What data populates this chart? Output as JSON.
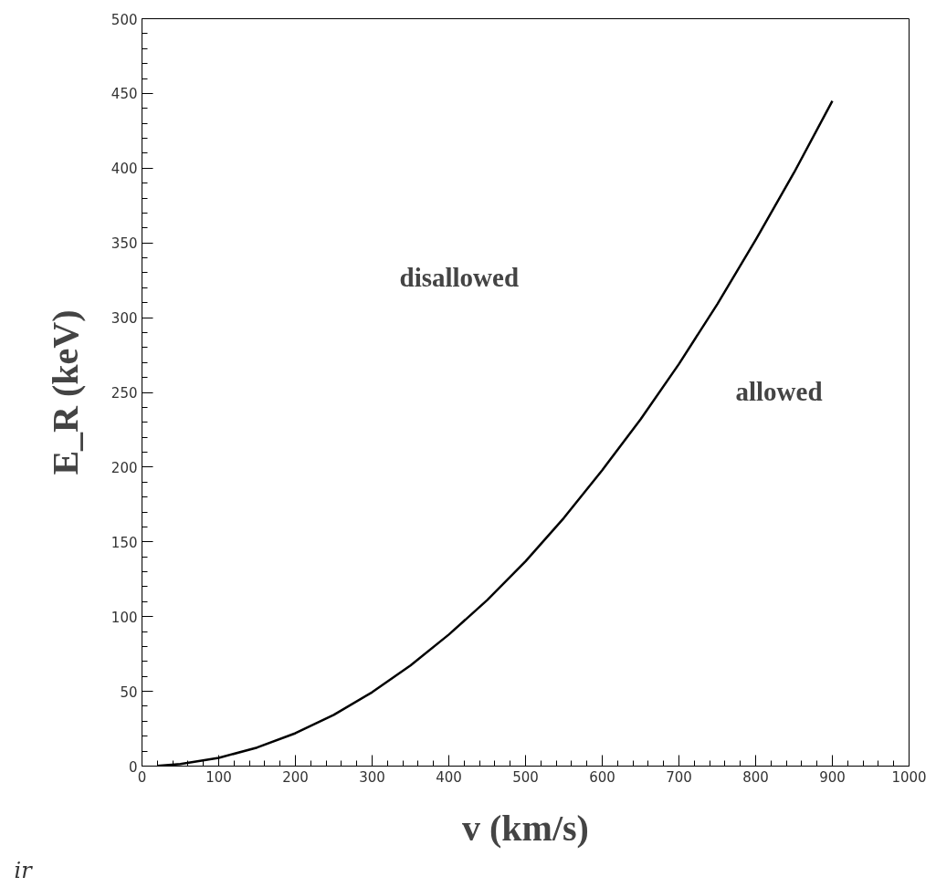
{
  "chart_data": {
    "type": "line",
    "xlabel": "v (km/s)",
    "ylabel": "E_R (keV)",
    "x": [
      20,
      50,
      100,
      150,
      200,
      250,
      300,
      350,
      400,
      450,
      500,
      550,
      600,
      650,
      700,
      750,
      800,
      850,
      900
    ],
    "series": [
      {
        "color": "#000000",
        "values": [
          0.2,
          1.4,
          5.5,
          12.4,
          22,
          34.3,
          49.4,
          67.3,
          88,
          111,
          137,
          166,
          198,
          232,
          269,
          309,
          352,
          397,
          445
        ]
      }
    ],
    "xlim": [
      0,
      1000
    ],
    "ylim": [
      0,
      500
    ],
    "xticks": [
      0,
      100,
      200,
      300,
      400,
      500,
      600,
      700,
      800,
      900,
      1000
    ],
    "yticks": [
      0,
      50,
      100,
      150,
      200,
      250,
      300,
      350,
      400,
      450,
      500
    ],
    "grid": false,
    "marker": "none",
    "line_style": "solid",
    "annotations": [
      "disallowed",
      "allowed",
      "ir"
    ]
  }
}
